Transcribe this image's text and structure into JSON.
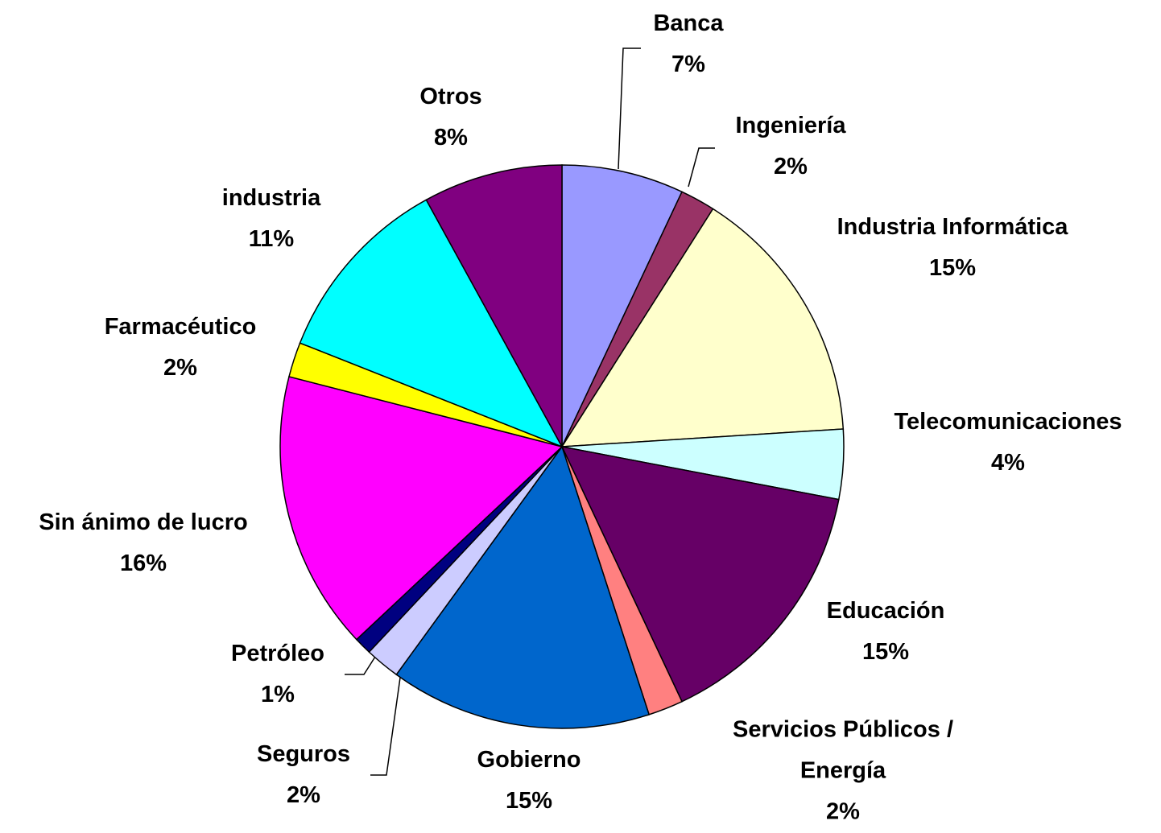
{
  "chart_data": {
    "type": "pie",
    "categories": [
      "Banca",
      "Ingeniería",
      "Industria Informática",
      "Telecomunicaciones",
      "Educación",
      "Servicios Públicos / Energía",
      "Gobierno",
      "Seguros",
      "Petróleo",
      "Sin ánimo de lucro",
      "Farmacéutico",
      "industria",
      "Otros"
    ],
    "values": [
      7,
      2,
      15,
      4,
      15,
      2,
      15,
      2,
      1,
      16,
      2,
      11,
      8
    ],
    "value_labels": [
      "7%",
      "2%",
      "15%",
      "4%",
      "15%",
      "2%",
      "15%",
      "2%",
      "1%",
      "16%",
      "2%",
      "11%",
      "8%"
    ],
    "colors": [
      "#9999ff",
      "#993366",
      "#ffffcc",
      "#ccffff",
      "#660066",
      "#ff8080",
      "#0066cc",
      "#ccccff",
      "#000080",
      "#ff00ff",
      "#ffff00",
      "#00ffff",
      "#800080"
    ]
  }
}
